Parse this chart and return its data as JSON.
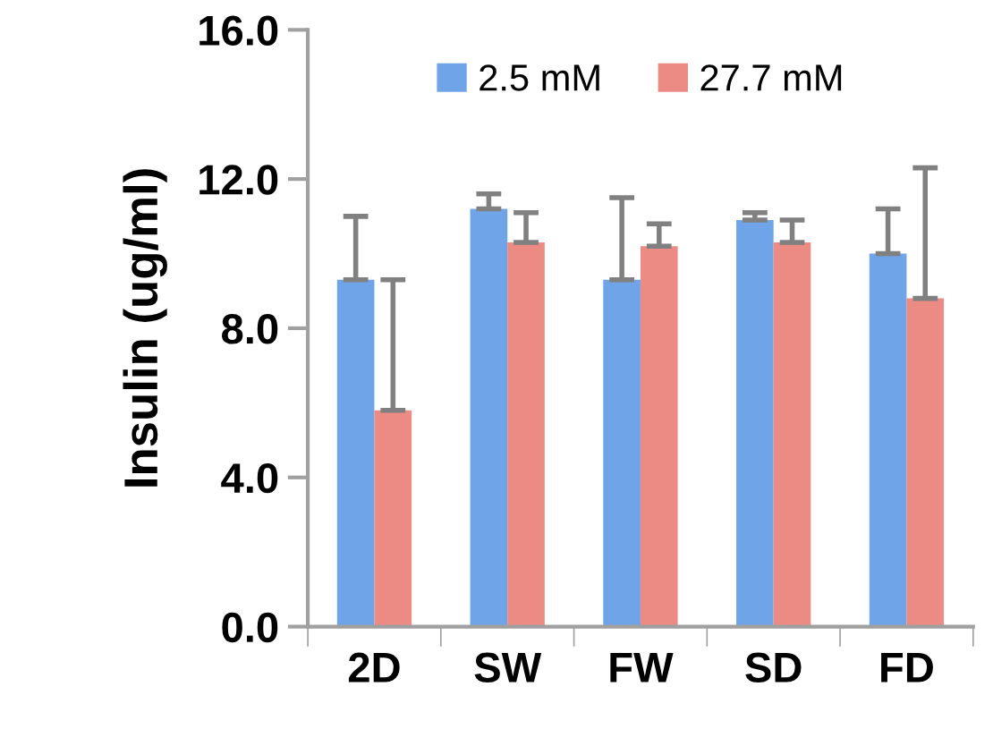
{
  "chart_data": {
    "type": "bar",
    "ylabel": "Insulin (ug/ml)",
    "categories": [
      "2D",
      "SW",
      "FW",
      "SD",
      "FD"
    ],
    "series": [
      {
        "name": "2.5 mM",
        "color": "#6fa5e8",
        "values": [
          9.3,
          11.2,
          9.3,
          10.9,
          10.0
        ],
        "errors": [
          [
            9.3,
            11.0
          ],
          [
            11.2,
            11.6
          ],
          [
            9.3,
            11.5
          ],
          [
            10.9,
            11.1
          ],
          [
            10.0,
            11.2
          ]
        ]
      },
      {
        "name": "27.7 mM",
        "color": "#ec8a84",
        "values": [
          5.8,
          10.3,
          10.2,
          10.3,
          8.8
        ],
        "errors": [
          [
            5.8,
            9.3
          ],
          [
            10.3,
            11.1
          ],
          [
            10.2,
            10.8
          ],
          [
            10.3,
            10.9
          ],
          [
            8.8,
            12.3
          ]
        ]
      }
    ],
    "ylim": [
      0,
      16
    ],
    "yticks": [
      {
        "value": 0,
        "label": "0.0"
      },
      {
        "value": 4,
        "label": "4.0"
      },
      {
        "value": 8,
        "label": "8.0"
      },
      {
        "value": 12,
        "label": "12.0"
      },
      {
        "value": 16,
        "label": "16.0"
      }
    ],
    "grid": false,
    "legend": "top"
  }
}
